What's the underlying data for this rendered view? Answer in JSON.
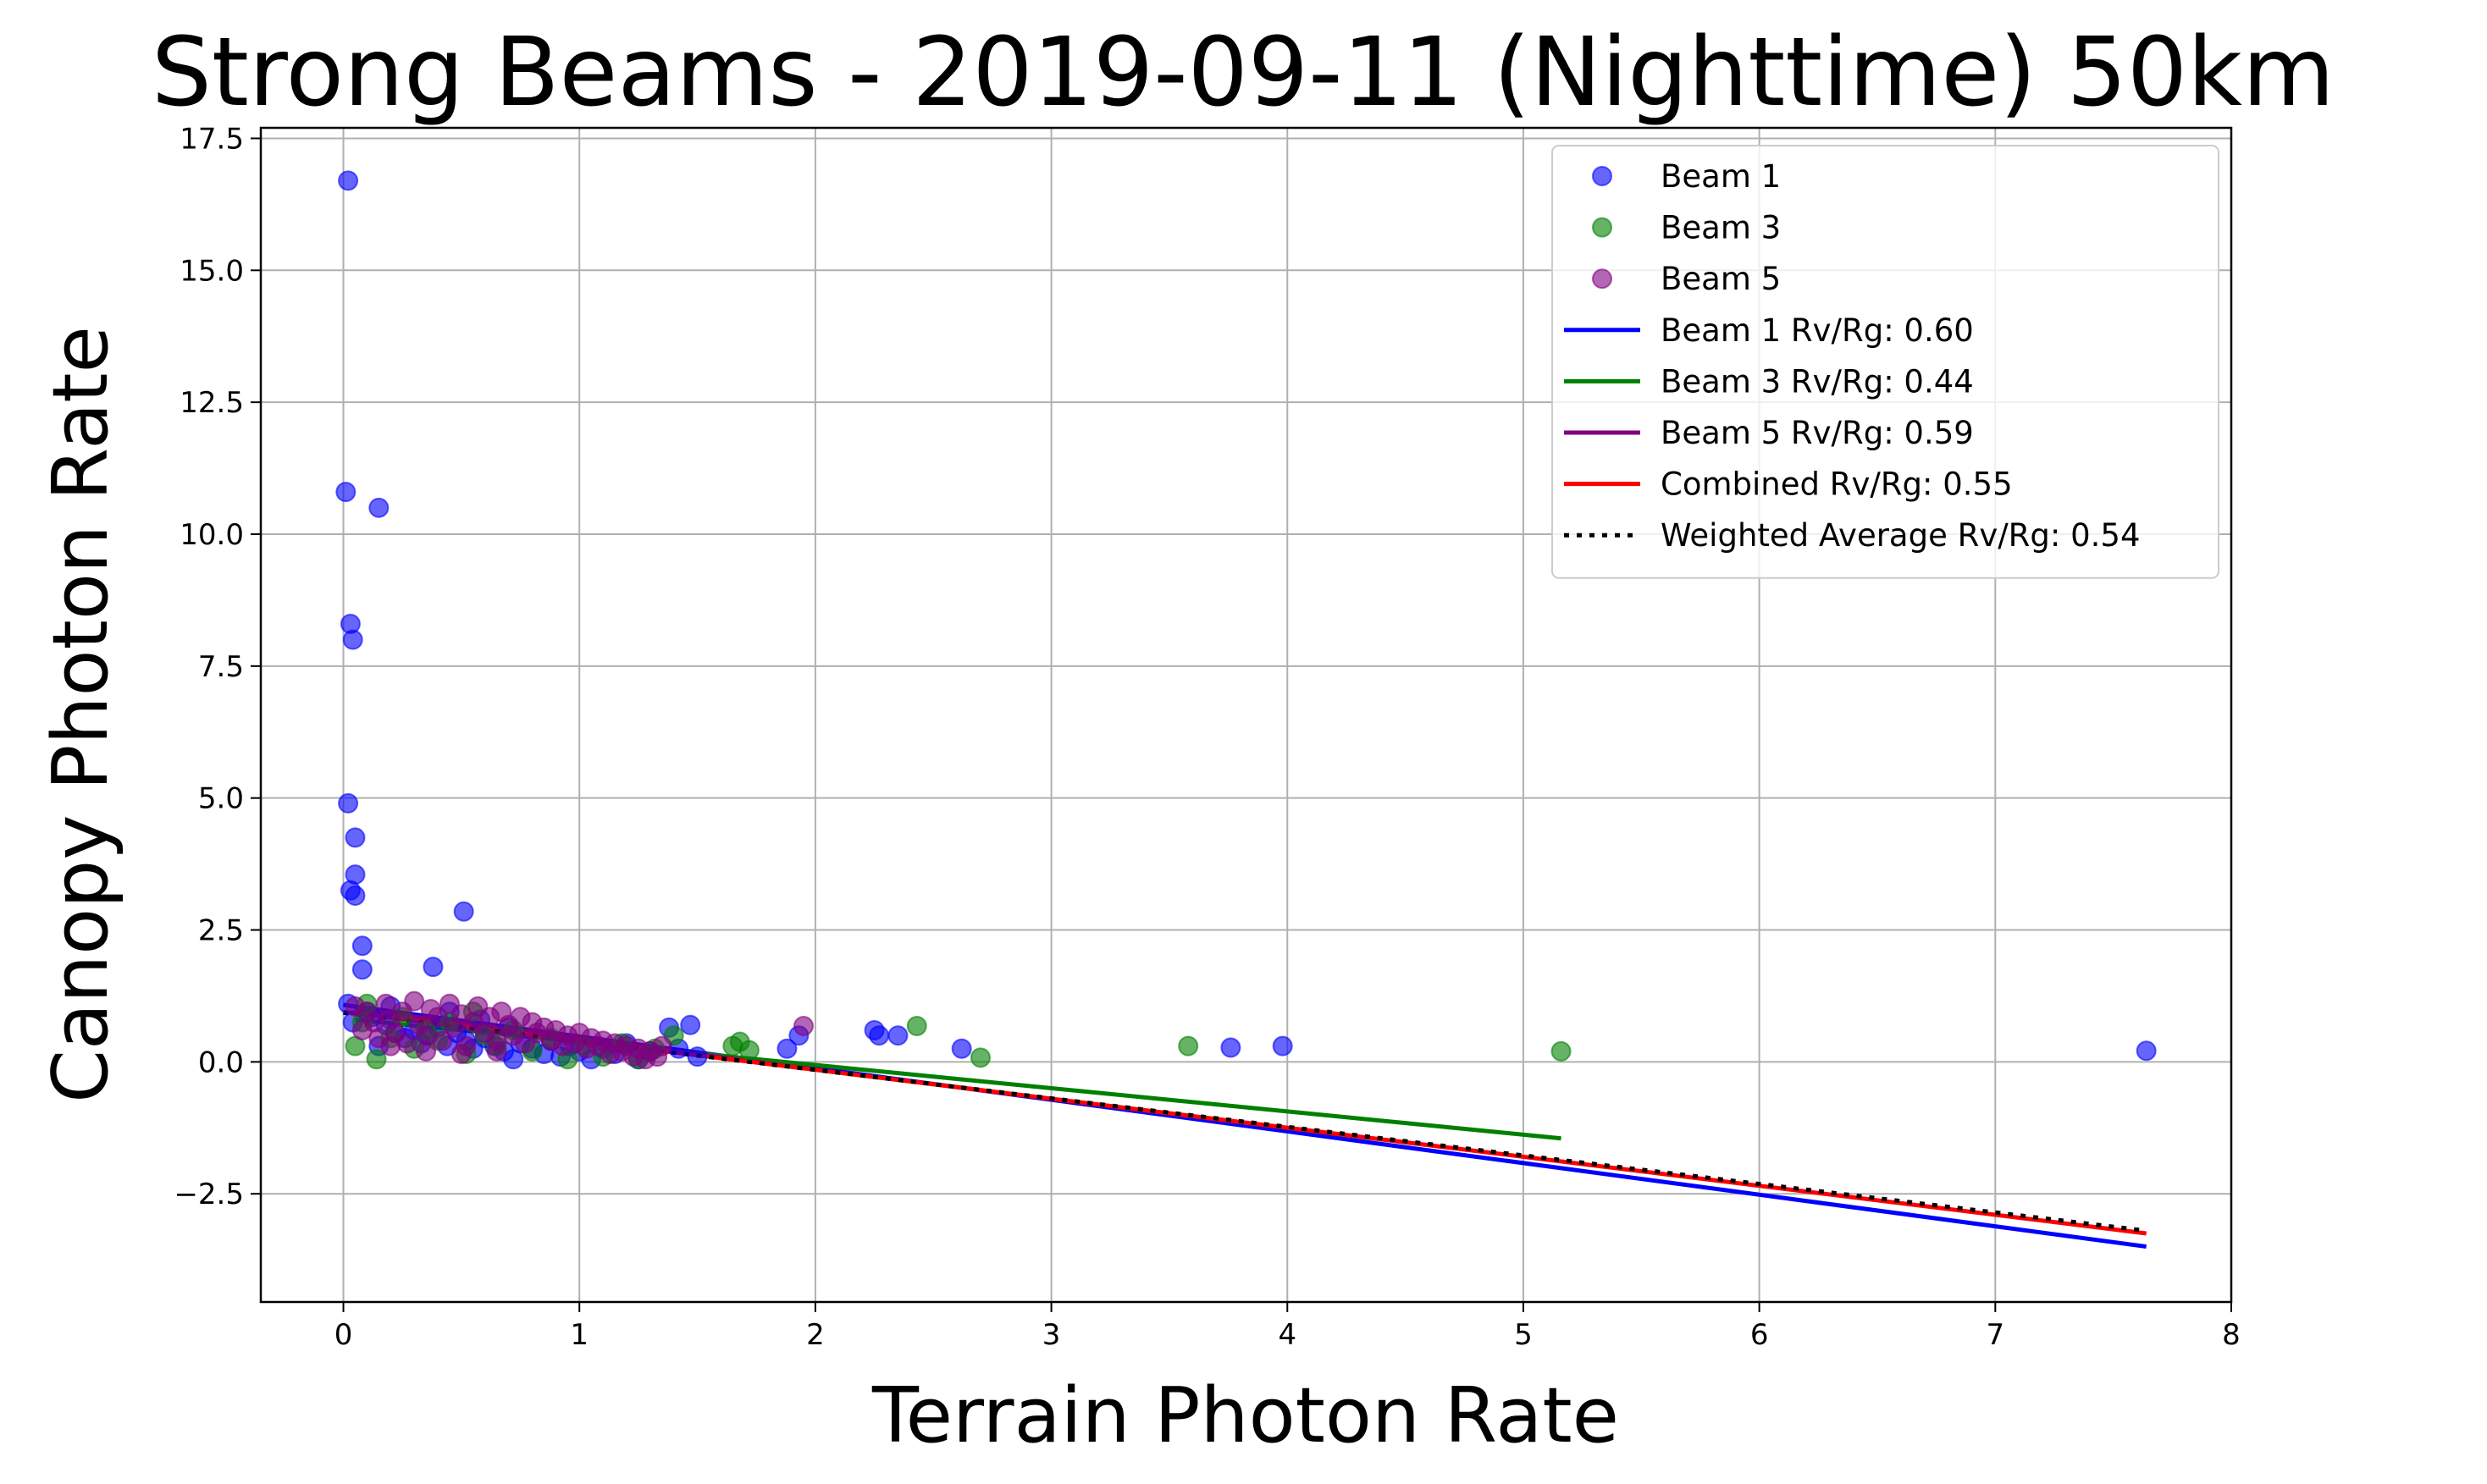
{
  "chart_data": {
    "type": "scatter",
    "title": "Strong Beams - 2019-09-11 (Nighttime) 50km",
    "xlabel": "Terrain Photon Rate",
    "ylabel": "Canopy Photon Rate",
    "xlim": [
      -0.35,
      8.0
    ],
    "ylim": [
      -4.55,
      17.7
    ],
    "xticks": [
      0,
      1,
      2,
      3,
      4,
      5,
      6,
      7,
      8
    ],
    "xtick_labels": [
      "0",
      "1",
      "2",
      "3",
      "4",
      "5",
      "6",
      "7",
      "8"
    ],
    "yticks": [
      -2.5,
      0,
      2.5,
      5,
      7.5,
      10,
      12.5,
      15,
      17.5
    ],
    "ytick_labels": [
      "−2.5",
      "0.0",
      "2.5",
      "5.0",
      "7.5",
      "10.0",
      "12.5",
      "15.0",
      "17.5"
    ],
    "grid": true,
    "legend_position": "top-right",
    "series": [
      {
        "name": "Beam 1",
        "kind": "scatter",
        "color": "#0000ff",
        "points": [
          [
            0.02,
            16.7
          ],
          [
            0.01,
            10.8
          ],
          [
            0.15,
            10.5
          ],
          [
            0.03,
            8.3
          ],
          [
            0.04,
            8.0
          ],
          [
            0.02,
            4.9
          ],
          [
            0.05,
            4.25
          ],
          [
            0.05,
            3.55
          ],
          [
            0.03,
            3.25
          ],
          [
            0.05,
            3.15
          ],
          [
            0.51,
            2.85
          ],
          [
            0.08,
            2.2
          ],
          [
            0.08,
            1.75
          ],
          [
            0.38,
            1.8
          ],
          [
            0.02,
            1.1
          ],
          [
            0.04,
            0.75
          ],
          [
            0.1,
            0.95
          ],
          [
            0.12,
            0.85
          ],
          [
            0.18,
            0.7
          ],
          [
            0.22,
            0.55
          ],
          [
            0.26,
            0.45
          ],
          [
            0.3,
            0.6
          ],
          [
            0.33,
            0.35
          ],
          [
            0.36,
            0.5
          ],
          [
            0.4,
            0.65
          ],
          [
            0.44,
            0.3
          ],
          [
            0.48,
            0.55
          ],
          [
            0.52,
            0.4
          ],
          [
            0.55,
            0.25
          ],
          [
            0.6,
            0.45
          ],
          [
            0.64,
            0.3
          ],
          [
            0.68,
            0.2
          ],
          [
            0.72,
            0.05
          ],
          [
            0.75,
            0.35
          ],
          [
            0.8,
            0.25
          ],
          [
            0.85,
            0.15
          ],
          [
            0.88,
            0.4
          ],
          [
            0.92,
            0.1
          ],
          [
            0.96,
            0.3
          ],
          [
            1.0,
            0.2
          ],
          [
            1.05,
            0.05
          ],
          [
            1.1,
            0.25
          ],
          [
            1.15,
            0.15
          ],
          [
            1.2,
            0.35
          ],
          [
            1.25,
            0.05
          ],
          [
            1.3,
            0.2
          ],
          [
            1.38,
            0.65
          ],
          [
            1.42,
            0.25
          ],
          [
            1.47,
            0.7
          ],
          [
            1.5,
            0.1
          ],
          [
            1.88,
            0.25
          ],
          [
            1.93,
            0.5
          ],
          [
            2.25,
            0.6
          ],
          [
            2.27,
            0.5
          ],
          [
            2.35,
            0.5
          ],
          [
            2.62,
            0.25
          ],
          [
            3.76,
            0.27
          ],
          [
            3.98,
            0.3
          ],
          [
            7.64,
            0.21
          ],
          [
            0.15,
            0.3
          ],
          [
            0.2,
            1.05
          ],
          [
            0.45,
            0.95
          ],
          [
            0.58,
            0.8
          ],
          [
            0.7,
            0.65
          ]
        ]
      },
      {
        "name": "Beam 3",
        "kind": "scatter",
        "color": "#008000",
        "points": [
          [
            0.05,
            0.3
          ],
          [
            0.08,
            0.75
          ],
          [
            0.14,
            0.05
          ],
          [
            0.2,
            0.45
          ],
          [
            0.25,
            0.85
          ],
          [
            0.3,
            0.25
          ],
          [
            0.35,
            0.6
          ],
          [
            0.4,
            0.4
          ],
          [
            0.45,
            0.75
          ],
          [
            0.52,
            0.15
          ],
          [
            0.6,
            0.5
          ],
          [
            0.65,
            0.3
          ],
          [
            0.72,
            0.6
          ],
          [
            0.8,
            0.2
          ],
          [
            0.88,
            0.45
          ],
          [
            0.95,
            0.05
          ],
          [
            1.02,
            0.3
          ],
          [
            1.1,
            0.1
          ],
          [
            1.18,
            0.35
          ],
          [
            1.25,
            0.05
          ],
          [
            1.32,
            0.25
          ],
          [
            1.4,
            0.5
          ],
          [
            1.65,
            0.3
          ],
          [
            1.68,
            0.38
          ],
          [
            1.72,
            0.22
          ],
          [
            2.43,
            0.68
          ],
          [
            2.7,
            0.08
          ],
          [
            3.58,
            0.3
          ],
          [
            5.16,
            0.2
          ],
          [
            0.1,
            1.1
          ],
          [
            0.55,
            0.95
          ]
        ]
      },
      {
        "name": "Beam 5",
        "kind": "scatter",
        "color": "#800080",
        "points": [
          [
            0.05,
            1.05
          ],
          [
            0.08,
            0.6
          ],
          [
            0.1,
            0.95
          ],
          [
            0.13,
            0.75
          ],
          [
            0.15,
            0.45
          ],
          [
            0.18,
            1.1
          ],
          [
            0.2,
            0.8
          ],
          [
            0.22,
            0.55
          ],
          [
            0.25,
            0.95
          ],
          [
            0.27,
            0.35
          ],
          [
            0.3,
            1.15
          ],
          [
            0.32,
            0.7
          ],
          [
            0.35,
            0.5
          ],
          [
            0.37,
            1.0
          ],
          [
            0.4,
            0.85
          ],
          [
            0.42,
            0.4
          ],
          [
            0.45,
            1.1
          ],
          [
            0.47,
            0.65
          ],
          [
            0.5,
            0.9
          ],
          [
            0.52,
            0.3
          ],
          [
            0.55,
            0.75
          ],
          [
            0.57,
            1.05
          ],
          [
            0.6,
            0.55
          ],
          [
            0.62,
            0.85
          ],
          [
            0.65,
            0.4
          ],
          [
            0.67,
            0.95
          ],
          [
            0.7,
            0.7
          ],
          [
            0.72,
            0.5
          ],
          [
            0.75,
            0.85
          ],
          [
            0.77,
            0.35
          ],
          [
            0.8,
            0.75
          ],
          [
            0.82,
            0.55
          ],
          [
            0.85,
            0.65
          ],
          [
            0.88,
            0.4
          ],
          [
            0.9,
            0.6
          ],
          [
            0.93,
            0.3
          ],
          [
            0.95,
            0.5
          ],
          [
            0.98,
            0.35
          ],
          [
            1.0,
            0.55
          ],
          [
            1.03,
            0.25
          ],
          [
            1.05,
            0.45
          ],
          [
            1.08,
            0.3
          ],
          [
            1.1,
            0.4
          ],
          [
            1.13,
            0.15
          ],
          [
            1.15,
            0.35
          ],
          [
            1.18,
            0.2
          ],
          [
            1.2,
            0.3
          ],
          [
            1.23,
            0.1
          ],
          [
            1.25,
            0.25
          ],
          [
            1.28,
            0.05
          ],
          [
            1.3,
            0.2
          ],
          [
            1.33,
            0.1
          ],
          [
            1.35,
            0.3
          ],
          [
            1.95,
            0.68
          ],
          [
            0.2,
            0.3
          ],
          [
            0.35,
            0.2
          ],
          [
            0.5,
            0.15
          ],
          [
            0.65,
            0.2
          ]
        ]
      },
      {
        "name": "Beam 1 Rv/Rg: 0.60",
        "kind": "line",
        "style": "solid",
        "color": "#0000ff",
        "points": [
          [
            0.0,
            1.08
          ],
          [
            7.64,
            -3.5
          ]
        ]
      },
      {
        "name": "Beam 3 Rv/Rg: 0.44",
        "kind": "line",
        "style": "solid",
        "color": "#008000",
        "points": [
          [
            0.05,
            0.8
          ],
          [
            5.16,
            -1.45
          ]
        ]
      },
      {
        "name": "Beam 5 Rv/Rg: 0.59",
        "kind": "line",
        "style": "solid",
        "color": "#800080",
        "points": [
          [
            0.05,
            1.0
          ],
          [
            1.95,
            -0.12
          ]
        ]
      },
      {
        "name": "Combined Rv/Rg: 0.55",
        "kind": "line",
        "style": "solid",
        "color": "#ff0000",
        "points": [
          [
            0.0,
            0.95
          ],
          [
            7.64,
            -3.25
          ]
        ]
      },
      {
        "name": "Weighted Average Rv/Rg: 0.54",
        "kind": "line",
        "style": "dotted",
        "color": "#000000",
        "points": [
          [
            0.0,
            0.93
          ],
          [
            7.64,
            -3.2
          ]
        ]
      }
    ]
  }
}
